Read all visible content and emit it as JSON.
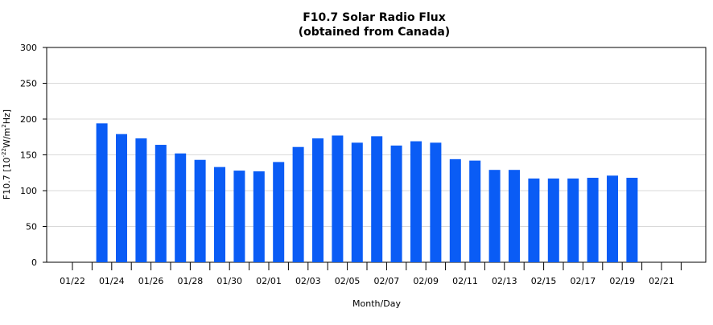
{
  "chart_data": {
    "type": "bar",
    "title": "F10.7 Solar Radio Flux",
    "subtitle": "(obtained from Canada)",
    "xlabel": "Month/Day",
    "ylabel": {
      "prefix": "F10.7 [10",
      "exp": "-22",
      "mid": "W/m",
      "exp2": "2",
      "suffix": "Hz]"
    },
    "ylim": [
      0,
      300
    ],
    "yticks": [
      0,
      50,
      100,
      150,
      200,
      250,
      300
    ],
    "grid": true,
    "bar_color": "#0a5cf5",
    "categories": [
      "01/22",
      "01/23",
      "01/24",
      "01/25",
      "01/26",
      "01/27",
      "01/28",
      "01/29",
      "01/30",
      "01/31",
      "02/01",
      "02/02",
      "02/03",
      "02/04",
      "02/05",
      "02/06",
      "02/07",
      "02/08",
      "02/09",
      "02/10",
      "02/11",
      "02/12",
      "02/13",
      "02/14",
      "02/15",
      "02/16",
      "02/17",
      "02/18",
      "02/19",
      "02/20",
      "02/21",
      "02/22"
    ],
    "values": [
      null,
      194,
      179,
      173,
      164,
      152,
      143,
      133,
      128,
      127,
      140,
      161,
      173,
      177,
      167,
      176,
      163,
      169,
      167,
      144,
      142,
      129,
      129,
      117,
      117,
      117,
      118,
      121,
      118,
      null,
      null,
      null
    ],
    "x_tick_labels": [
      "01/22",
      "01/24",
      "01/26",
      "01/28",
      "01/30",
      "02/01",
      "02/03",
      "02/05",
      "02/07",
      "02/09",
      "02/11",
      "02/13",
      "02/15",
      "02/17",
      "02/19",
      "02/21"
    ]
  }
}
